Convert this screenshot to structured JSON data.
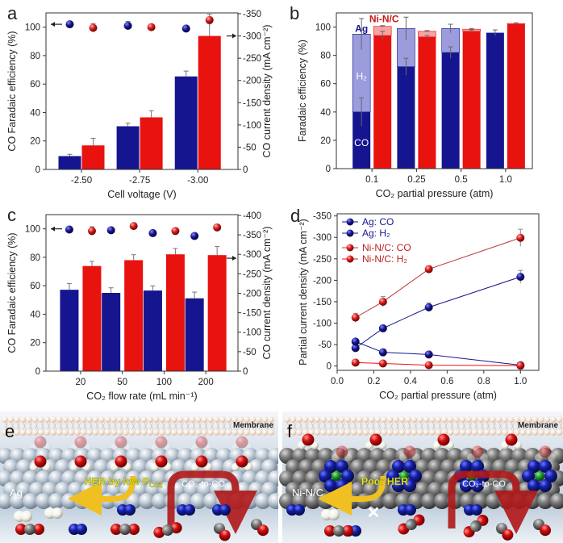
{
  "panel_labels": [
    "a",
    "b",
    "c",
    "d",
    "e",
    "f"
  ],
  "colors": {
    "ag_blue": "#15168f",
    "ag_light": "#9b9cdc",
    "ni_red": "#e8120f",
    "ni_light": "#f5a3a3",
    "ni_line": "#b83a3a"
  },
  "chart_data": [
    {
      "panel": "a",
      "type": "bar+scatter",
      "categories": [
        "-2.50",
        "-2.75",
        "-3.00"
      ],
      "xlabel": "Cell voltage (V)",
      "ylabel": "CO Faradaic efficiency (%)",
      "ylabel_right": "CO current density (mA cm⁻²)",
      "ylim": [
        0,
        110
      ],
      "yticks": [
        0,
        20,
        40,
        60,
        80,
        100
      ],
      "ylim_right": [
        0,
        -350
      ],
      "yticks_right": [
        0,
        -50,
        -100,
        -150,
        -200,
        -250,
        -300,
        -350
      ],
      "series": [
        {
          "kind": "bar",
          "axis": "right",
          "color": "#15168f",
          "values": [
            -30,
            -97,
            -209
          ],
          "err": [
            4,
            7,
            12
          ]
        },
        {
          "kind": "bar",
          "axis": "right",
          "color": "#e8120f",
          "values": [
            -54,
            -117,
            -300
          ],
          "err": [
            16,
            15,
            28
          ]
        },
        {
          "kind": "scatter",
          "axis": "left",
          "color": "#15168f",
          "values": [
            102,
            101,
            99
          ],
          "err": [
            1,
            3,
            1
          ]
        },
        {
          "kind": "scatter",
          "axis": "left",
          "color": "#e8120f",
          "values": [
            99.5,
            100,
            105
          ],
          "err": [
            3,
            1,
            4
          ]
        }
      ]
    },
    {
      "panel": "b",
      "type": "stacked-bar",
      "categories": [
        "0.1",
        "0.25",
        "0.5",
        "1.0"
      ],
      "xlabel": "CO₂ partial pressure (atm)",
      "ylabel": "Faradaic efficiency (%)",
      "ylim": [
        0,
        110
      ],
      "yticks": [
        0,
        20,
        40,
        60,
        80,
        100
      ],
      "segment_labels": {
        "co": "CO",
        "h2": "H₂"
      },
      "series": [
        {
          "name": "Ag",
          "color": "#15168f",
          "light_color": "#9b9cdc",
          "co": [
            40,
            72,
            82,
            96
          ],
          "h2": [
            55,
            27,
            17,
            0
          ],
          "co_err": [
            10,
            6,
            4,
            0
          ],
          "total_err": [
            11,
            8,
            3,
            2
          ]
        },
        {
          "name": "Ni-N/C",
          "color": "#e8120f",
          "light_color": "#f5a3a3",
          "co": [
            94,
            93,
            97,
            102
          ],
          "h2": [
            6.5,
            4,
            1.5,
            0.5
          ],
          "co_err": [
            3,
            1,
            1,
            0
          ],
          "total_err": [
            0.5,
            0.5,
            0.5,
            0.5
          ]
        }
      ]
    },
    {
      "panel": "c",
      "type": "bar+scatter",
      "categories": [
        "20",
        "50",
        "100",
        "200"
      ],
      "xlabel": "CO₂ flow rate  (mL min⁻¹)",
      "ylabel": "CO Faradaic efficiency (%)",
      "ylabel_right": "CO current density (mA cm⁻²)",
      "ylim": [
        0,
        110
      ],
      "yticks": [
        0,
        20,
        40,
        60,
        80,
        100
      ],
      "ylim_right": [
        0,
        -400
      ],
      "yticks_right": [
        0,
        -50,
        -100,
        -150,
        -200,
        -250,
        -300,
        -350,
        -400
      ],
      "series": [
        {
          "kind": "bar",
          "axis": "right",
          "color": "#15168f",
          "values": [
            -209,
            -201,
            -207,
            -187
          ],
          "err": [
            16,
            13,
            12,
            16
          ]
        },
        {
          "kind": "bar",
          "axis": "right",
          "color": "#e8120f",
          "values": [
            -270,
            -285,
            -300,
            -298
          ],
          "err": [
            12,
            14,
            15,
            22
          ]
        },
        {
          "kind": "scatter",
          "axis": "left",
          "color": "#15168f",
          "values": [
            99.5,
            99,
            97,
            95
          ],
          "err": [
            0,
            0,
            0,
            0
          ]
        },
        {
          "kind": "scatter",
          "axis": "left",
          "color": "#e8120f",
          "values": [
            98.5,
            102,
            98.5,
            101
          ],
          "err": [
            3,
            1,
            1.5,
            2
          ]
        }
      ]
    },
    {
      "panel": "d",
      "type": "line",
      "x": [
        0.1,
        0.25,
        0.5,
        1.0
      ],
      "xlabel": "CO₂ partial pressure (atm)",
      "ylabel": "Partial current density (mA cm⁻²)",
      "xlim": [
        0,
        1.1
      ],
      "xticks": [
        "0.0",
        "0.2",
        "0.4",
        "0.6",
        "0.8",
        "1.0"
      ],
      "ylim": [
        10,
        -355
      ],
      "yticks": [
        0,
        -50,
        -100,
        -150,
        -200,
        -250,
        -300,
        -350
      ],
      "legend_position": "top-left",
      "series": [
        {
          "name": "Ag: CO",
          "color": "#15168f",
          "marker": "half",
          "values": [
            -42,
            -88,
            -137,
            -208
          ],
          "err": [
            5,
            5,
            10,
            15
          ]
        },
        {
          "name": "Ag: H₂",
          "color": "#15168f",
          "marker": "full",
          "values": [
            -57,
            -32,
            -27,
            -2
          ],
          "err": [
            0,
            0,
            0,
            0
          ]
        },
        {
          "name": "Ni-N/C: CO",
          "color": "#b83a3a",
          "marker": "half",
          "values": [
            -113,
            -150,
            -226,
            -299
          ],
          "err": [
            10,
            12,
            8,
            20
          ]
        },
        {
          "name": "Ni-N/C: H₂",
          "color": "#e8120f",
          "marker": "full",
          "values": [
            -8,
            -6,
            -2,
            -1
          ],
          "err": [
            0,
            0,
            0,
            0
          ]
        }
      ]
    }
  ],
  "illustrations": {
    "e": {
      "membrane": "Membrane",
      "electrode": "Ag",
      "her_label": "HER by low P",
      "her_sub": "CO2",
      "co2_label": "CO₂-to-CO"
    },
    "f": {
      "membrane": "Membrane",
      "electrode": "Ni-N/C",
      "her_label": "Poor HER",
      "co2_label": "CO₂-to-CO",
      "blocked_mark": "✕"
    }
  }
}
